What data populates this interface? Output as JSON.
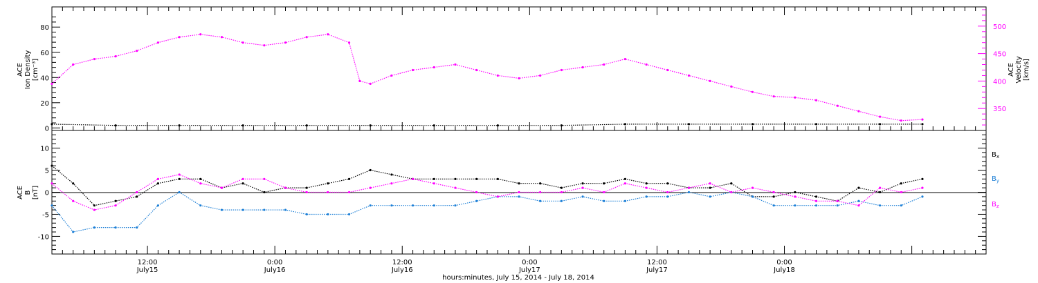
{
  "chart_data": [
    {
      "panel": "top",
      "type": "scatter",
      "ylabel_left": [
        "ACE",
        "Ion Density",
        "[cm⁻³]"
      ],
      "ylabel_right": [
        "ACE",
        "Velocity",
        "[km/s]"
      ],
      "ylim_left": [
        -2,
        96
      ],
      "yticks_left": [
        "0",
        "20",
        "40",
        "60",
        "80"
      ],
      "ylim_right": [
        310,
        535
      ],
      "yticks_right": [
        "350",
        "400",
        "450",
        "500"
      ],
      "colors": {
        "density": "#000000",
        "velocity": "#ff00ff"
      },
      "series": [
        {
          "axis": "left",
          "color": "#000000",
          "x": [
            0,
            6,
            12,
            18,
            24,
            30,
            36,
            42,
            48,
            54,
            60,
            66,
            72,
            78,
            82
          ],
          "y": [
            3,
            2,
            2,
            2,
            2,
            2,
            2,
            2,
            2,
            3,
            3,
            3,
            3,
            3,
            3
          ]
        },
        {
          "axis": "right",
          "color": "#ff00ff",
          "x": [
            0,
            2,
            4,
            6,
            8,
            10,
            12,
            14,
            16,
            18,
            20,
            22,
            24,
            26,
            28,
            29,
            30,
            32,
            34,
            36,
            38,
            40,
            42,
            44,
            46,
            48,
            50,
            52,
            54,
            56,
            58,
            60,
            62,
            64,
            66,
            68,
            70,
            72,
            74,
            76,
            78,
            80,
            82
          ],
          "y": [
            395,
            430,
            440,
            445,
            455,
            470,
            480,
            485,
            480,
            470,
            465,
            470,
            480,
            485,
            470,
            400,
            395,
            410,
            420,
            425,
            430,
            420,
            410,
            405,
            410,
            420,
            425,
            430,
            440,
            430,
            420,
            410,
            400,
            390,
            380,
            372,
            370,
            365,
            355,
            345,
            335,
            328,
            330
          ]
        }
      ]
    },
    {
      "panel": "bottom",
      "type": "scatter",
      "ylabel": [
        "ACE",
        "B",
        "[nT]"
      ],
      "ylim": [
        -14,
        14
      ],
      "yticks": [
        "-10",
        "-5",
        "0",
        "5",
        "10"
      ],
      "legend": [
        {
          "label": "Bx",
          "color": "#000000"
        },
        {
          "label": "By",
          "color": "#1c7fd6"
        },
        {
          "label": "Bz",
          "color": "#ff00ff"
        }
      ],
      "series": [
        {
          "name": "Bx",
          "color": "#000000",
          "x": [
            0,
            2,
            4,
            6,
            8,
            10,
            12,
            14,
            16,
            18,
            20,
            22,
            24,
            26,
            28,
            30,
            32,
            34,
            36,
            38,
            40,
            42,
            44,
            46,
            48,
            50,
            52,
            54,
            56,
            58,
            60,
            62,
            64,
            66,
            68,
            70,
            72,
            74,
            76,
            78,
            80,
            82
          ],
          "y": [
            6,
            2,
            -3,
            -2,
            -1,
            2,
            3,
            3,
            1,
            2,
            0,
            1,
            1,
            2,
            3,
            5,
            4,
            3,
            3,
            3,
            3,
            3,
            2,
            2,
            1,
            2,
            2,
            3,
            2,
            2,
            1,
            1,
            2,
            -1,
            -1,
            0,
            -1,
            -2,
            1,
            0,
            2,
            3
          ]
        },
        {
          "name": "By",
          "color": "#1c7fd6",
          "x": [
            0,
            2,
            4,
            6,
            8,
            10,
            12,
            14,
            16,
            18,
            20,
            22,
            24,
            26,
            28,
            30,
            32,
            34,
            36,
            38,
            40,
            42,
            44,
            46,
            48,
            50,
            52,
            54,
            56,
            58,
            60,
            62,
            64,
            66,
            68,
            70,
            72,
            74,
            76,
            78,
            80,
            82
          ],
          "y": [
            -3,
            -9,
            -8,
            -8,
            -8,
            -3,
            0,
            -3,
            -4,
            -4,
            -4,
            -4,
            -5,
            -5,
            -5,
            -3,
            -3,
            -3,
            -3,
            -3,
            -2,
            -1,
            -1,
            -2,
            -2,
            -1,
            -2,
            -2,
            -1,
            -1,
            0,
            -1,
            0,
            -1,
            -3,
            -3,
            -3,
            -3,
            -2,
            -3,
            -3,
            -1
          ]
        },
        {
          "name": "Bz",
          "color": "#ff00ff",
          "x": [
            0,
            2,
            4,
            6,
            8,
            10,
            12,
            14,
            16,
            18,
            20,
            22,
            24,
            26,
            28,
            30,
            32,
            34,
            36,
            38,
            40,
            42,
            44,
            46,
            48,
            50,
            52,
            54,
            56,
            58,
            60,
            62,
            64,
            66,
            68,
            70,
            72,
            74,
            76,
            78,
            80,
            82
          ],
          "y": [
            2,
            -2,
            -4,
            -3,
            0,
            3,
            4,
            2,
            1,
            3,
            3,
            1,
            0,
            0,
            0,
            1,
            2,
            3,
            2,
            1,
            0,
            -1,
            0,
            0,
            0,
            1,
            0,
            2,
            1,
            0,
            1,
            2,
            0,
            1,
            0,
            -1,
            -2,
            -2,
            -3,
            1,
            0,
            1
          ]
        }
      ]
    }
  ],
  "x_axis": {
    "range_hours": [
      0,
      88
    ],
    "tick_labels": [
      {
        "time": "12:00",
        "date": "July15"
      },
      {
        "time": "0:00",
        "date": "July16"
      },
      {
        "time": "12:00",
        "date": "July16"
      },
      {
        "time": "0:00",
        "date": "July17"
      },
      {
        "time": "12:00",
        "date": "July17"
      },
      {
        "time": "0:00",
        "date": "July18"
      }
    ],
    "label": "hours:minutes, July 15, 2014 - July 18, 2014"
  }
}
